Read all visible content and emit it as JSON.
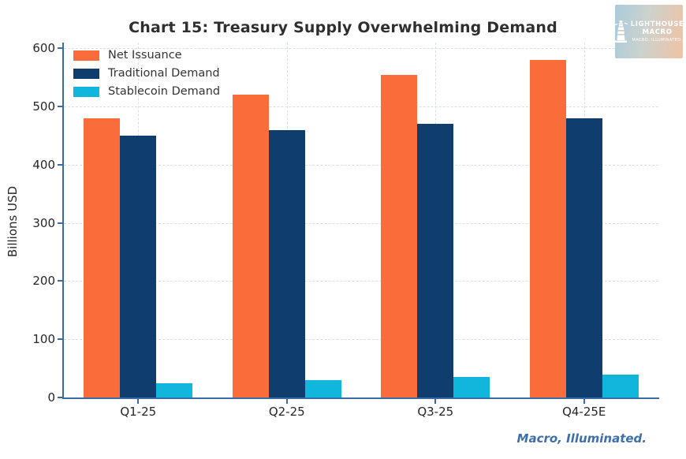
{
  "title": "Chart 15: Treasury Supply Overwhelming Demand",
  "footer": "Macro, Illuminated.",
  "logo": {
    "line1": "LIGHTHOUSE",
    "line2": "MACRO",
    "tagline": "MACRO, ILLUMINATED."
  },
  "chart_data": {
    "type": "bar",
    "title": "Chart 15: Treasury Supply Overwhelming Demand",
    "categories": [
      "Q1-25",
      "Q2-25",
      "Q3-25",
      "Q4-25E"
    ],
    "series": [
      {
        "name": "Net Issuance",
        "color": "#FB6C3B",
        "values": [
          480,
          520,
          555,
          580
        ]
      },
      {
        "name": "Traditional Demand",
        "color": "#0E3D6E",
        "values": [
          450,
          460,
          470,
          480
        ]
      },
      {
        "name": "Stablecoin Demand",
        "color": "#10B6DC",
        "values": [
          25,
          30,
          35,
          40
        ]
      }
    ],
    "xlabel": "",
    "ylabel": "Billions USD",
    "ylim": [
      0,
      610
    ],
    "yticks": [
      0,
      100,
      200,
      300,
      400,
      500,
      600
    ],
    "grid": true,
    "grid_style": "dashed",
    "legend_position": "upper left"
  },
  "colors": {
    "axis": "#3A6CA3",
    "grid": "#D9DEE9",
    "title_text": "#2F2F2F",
    "tick_text": "#262626",
    "footer_text": "#3E6FA9"
  }
}
